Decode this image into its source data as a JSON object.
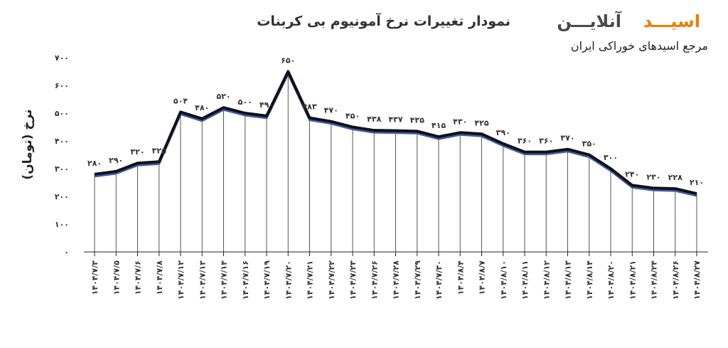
{
  "header": {
    "title": "نمودار تغییرات نرخ آمونیوم بی کربنات",
    "brand_part1": "اسیـــد",
    "brand_part2": "آنلایـــن",
    "tagline": "مرجع اسیدهای خوراکی ایران"
  },
  "colors": {
    "line": "#111111",
    "shadow_line": "#3b5bab",
    "brand_accent": "#f07c00",
    "drop_lines": "#555555",
    "axis": "#222222"
  },
  "chart_data": {
    "type": "line",
    "title": "نمودار تغییرات نرخ آمونیوم بی کربنات",
    "ylabel": "نرخ (تومان)",
    "xlabel": "",
    "ylim": [
      0,
      700
    ],
    "yticks": [
      "٠",
      "١٠٠",
      "٢٠٠",
      "٣٠٠",
      "۴٠٠",
      "۵٠٠",
      "۶٠٠",
      "٧٠٠"
    ],
    "grid": false,
    "drop_lines": true,
    "categories": [
      "١۴٠۴/٧/٣",
      "١۴٠۴/٧/۵",
      "١۴٠۴/٧/۶",
      "١۴٠۴/٧/٨",
      "١۴٠۴/٧/١٢",
      "١۴٠۴/٧/١٣",
      "١۴٠۴/٧/١۴",
      "١۴٠۴/٧/١۶",
      "١۴٠۴/٧/١٩",
      "١۴٠۴/٧/٢٠",
      "١۴٠۴/٧/٢١",
      "١۴٠۴/٧/٢٢",
      "١۴٠۴/٧/٢٣",
      "١۴٠۴/٧/٢۶",
      "١۴٠۴/٧/٢٨",
      "١۴٠۴/٧/٢٩",
      "١۴٠۴/٧/٣٠",
      "١۴٠۴/٨/۴",
      "١۴٠۴/٨/٧",
      "١۴٠۴/٨/١٠",
      "١۴٠۴/٨/١١",
      "١۴٠۴/٨/١٢",
      "١۴٠۴/٨/١٣",
      "١۴٠۴/٨/١۴",
      "١۴٠۴/٨/٢٠",
      "١۴٠۴/٨/٢١",
      "١۴٠۴/٨/٢۴",
      "١۴٠۴/٨/٢۶",
      "١۴٠۴/٨/٢٧"
    ],
    "values": [
      280,
      290,
      320,
      325,
      504,
      480,
      520,
      500,
      490,
      650,
      483,
      470,
      450,
      438,
      437,
      435,
      415,
      430,
      425,
      390,
      360,
      360,
      370,
      350,
      300,
      240,
      230,
      228,
      210
    ],
    "labels": [
      "٢٨٠",
      "٢٩٠",
      "٣٢٠",
      "٣٢۵",
      "۵٠۴",
      "۴٨٠",
      "۵٢٠",
      "۵٠٠",
      "۴٩٠",
      "۶۵٠",
      "۴٨٣",
      "۴٧٠",
      "۴۵٠",
      "۴٣٨",
      "۴٣٧",
      "۴٣۵",
      "۴١۵",
      "۴٣٠",
      "۴٢۵",
      "٣٩٠",
      "٣۶٠",
      "٣۶٠",
      "٣٧٠",
      "٣۵٠",
      "٣٠٠",
      "٢۴٠",
      "٢٣٠",
      "٢٢٨",
      "٢١٠"
    ]
  }
}
